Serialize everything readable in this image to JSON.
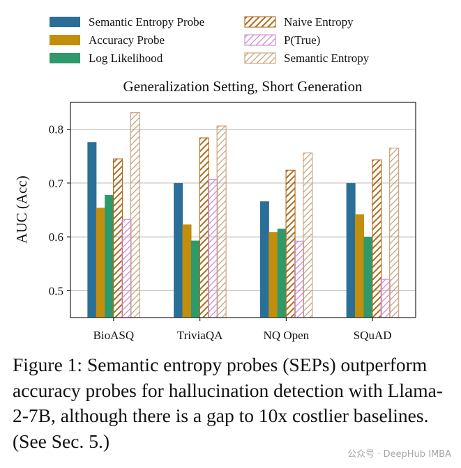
{
  "chart_data": {
    "type": "bar",
    "title": "Generalization Setting, Short Generation",
    "xlabel": "",
    "ylabel": "AUC (Acc)",
    "ylim": [
      0.45,
      0.85
    ],
    "yticks": [
      0.5,
      0.6,
      0.7,
      0.8
    ],
    "ytick_labels": [
      "0.5",
      "0.6",
      "0.7",
      "0.8"
    ],
    "grid": "horizontal",
    "legend_position": "top",
    "categories": [
      "BioASQ",
      "TriviaQA",
      "NQ Open",
      "SQuAD"
    ],
    "series": [
      {
        "name": "Semantic Entropy Probe",
        "style": "solid",
        "color": "#2a6f97",
        "values": [
          0.776,
          0.7,
          0.666,
          0.7
        ]
      },
      {
        "name": "Accuracy Probe",
        "style": "solid",
        "color": "#c38e0c",
        "values": [
          0.654,
          0.623,
          0.609,
          0.642
        ]
      },
      {
        "name": "Log Likelihood",
        "style": "solid",
        "color": "#2e9a6b",
        "values": [
          0.678,
          0.593,
          0.615,
          0.6
        ]
      },
      {
        "name": "Naive Entropy",
        "style": "hatched",
        "color": "#b06a17",
        "values": [
          0.745,
          0.784,
          0.724,
          0.743
        ]
      },
      {
        "name": "P(True)",
        "style": "hatched",
        "color": "#cc88d6",
        "values": [
          0.632,
          0.707,
          0.592,
          0.521
        ]
      },
      {
        "name": "Semantic Entropy",
        "style": "hatched",
        "color": "#c8a07a",
        "values": [
          0.831,
          0.806,
          0.756,
          0.765
        ]
      }
    ]
  },
  "caption": "Figure 1: Semantic entropy probes (SEPs) outperform accuracy probes for hallucination detection with Llama-2-7B, although there is a gap to 10x costlier baselines. (See Sec. 5.)",
  "watermark": "公众号 · DeepHub IMBA"
}
